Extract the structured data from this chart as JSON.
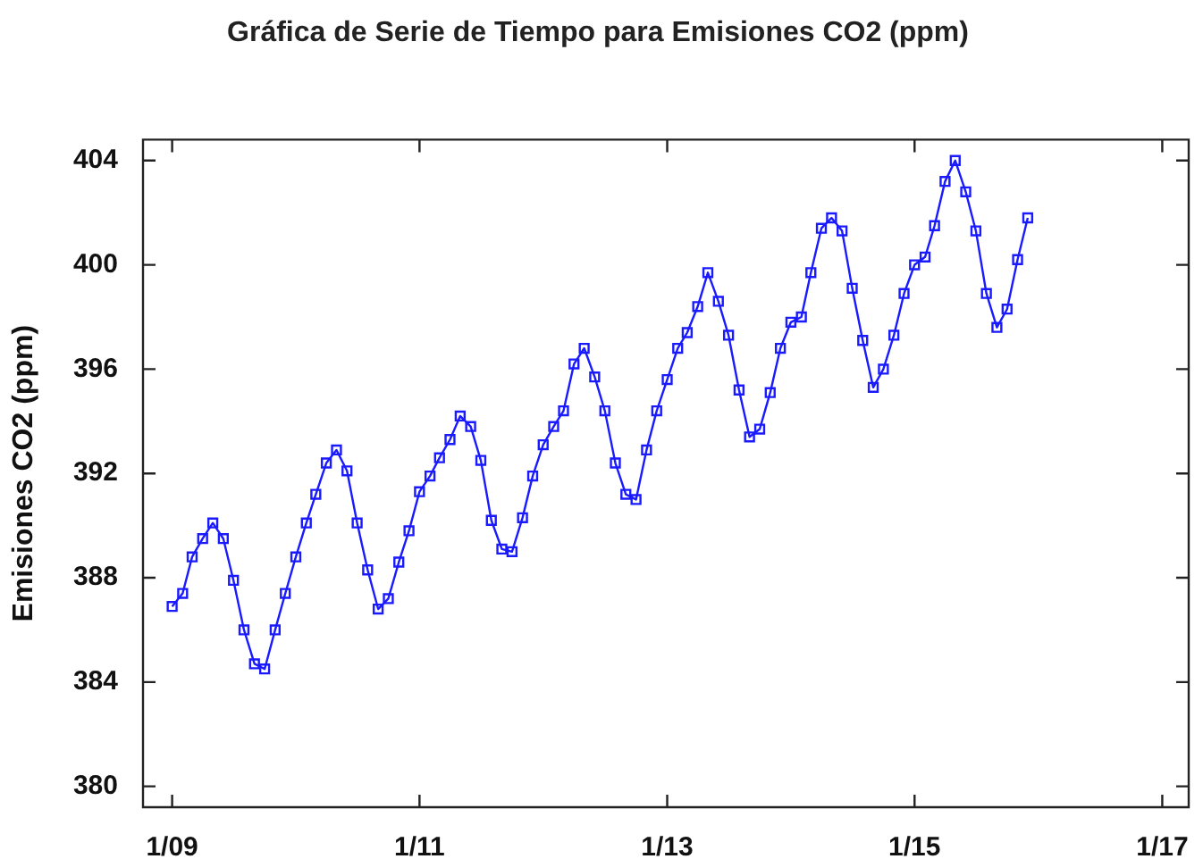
{
  "chart_data": {
    "type": "line",
    "title": "Gráfica de Serie de Tiempo para Emisiones CO2 (ppm)",
    "ylabel": "Emisiones CO2 (ppm)",
    "x": [
      "2009-01",
      "2009-02",
      "2009-03",
      "2009-04",
      "2009-05",
      "2009-06",
      "2009-07",
      "2009-08",
      "2009-09",
      "2009-10",
      "2009-11",
      "2009-12",
      "2010-01",
      "2010-02",
      "2010-03",
      "2010-04",
      "2010-05",
      "2010-06",
      "2010-07",
      "2010-08",
      "2010-09",
      "2010-10",
      "2010-11",
      "2010-12",
      "2011-01",
      "2011-02",
      "2011-03",
      "2011-04",
      "2011-05",
      "2011-06",
      "2011-07",
      "2011-08",
      "2011-09",
      "2011-10",
      "2011-11",
      "2011-12",
      "2012-01",
      "2012-02",
      "2012-03",
      "2012-04",
      "2012-05",
      "2012-06",
      "2012-07",
      "2012-08",
      "2012-09",
      "2012-10",
      "2012-11",
      "2012-12",
      "2013-01",
      "2013-02",
      "2013-03",
      "2013-04",
      "2013-05",
      "2013-06",
      "2013-07",
      "2013-08",
      "2013-09",
      "2013-10",
      "2013-11",
      "2013-12",
      "2014-01",
      "2014-02",
      "2014-03",
      "2014-04",
      "2014-05",
      "2014-06",
      "2014-07",
      "2014-08",
      "2014-09",
      "2014-10",
      "2014-11",
      "2014-12",
      "2015-01",
      "2015-02",
      "2015-03",
      "2015-04",
      "2015-05",
      "2015-06",
      "2015-07",
      "2015-08",
      "2015-09",
      "2015-10",
      "2015-11",
      "2015-12"
    ],
    "series": [
      {
        "color": "#1a1aff",
        "values": [
          386.9,
          387.4,
          388.8,
          389.5,
          390.1,
          389.5,
          387.9,
          386.0,
          384.7,
          384.5,
          386.0,
          387.4,
          388.8,
          390.1,
          391.2,
          392.4,
          392.9,
          392.1,
          390.1,
          388.3,
          386.8,
          387.2,
          388.6,
          389.8,
          391.3,
          391.9,
          392.6,
          393.3,
          394.2,
          393.8,
          392.5,
          390.2,
          389.1,
          389.0,
          390.3,
          391.9,
          393.1,
          393.8,
          394.4,
          396.2,
          396.8,
          395.7,
          394.4,
          392.4,
          391.2,
          391.0,
          392.9,
          394.4,
          395.6,
          396.8,
          397.4,
          398.4,
          399.7,
          398.6,
          397.3,
          395.2,
          393.4,
          393.7,
          395.1,
          396.8,
          397.8,
          398.0,
          399.7,
          401.4,
          401.8,
          401.3,
          399.1,
          397.1,
          395.3,
          396.0,
          397.3,
          398.9,
          400.0,
          400.3,
          401.5,
          403.2,
          404.0,
          402.8,
          401.3,
          398.9,
          397.6,
          398.3,
          400.2,
          401.8
        ]
      }
    ],
    "xlim": [
      "2008-10-07",
      "2017-03-20"
    ],
    "xticks": [
      {
        "value": "2009-01",
        "label": "1/09"
      },
      {
        "value": "2011-01",
        "label": "1/11"
      },
      {
        "value": "2013-01",
        "label": "1/13"
      },
      {
        "value": "2015-01",
        "label": "1/15"
      },
      {
        "value": "2017-01",
        "label": "1/17"
      }
    ],
    "ylim": [
      379.2,
      404.8
    ],
    "yticks": [
      380,
      384,
      388,
      392,
      396,
      400,
      404
    ],
    "marker": "square",
    "line_style": "solid",
    "grid": false,
    "legend": false
  }
}
